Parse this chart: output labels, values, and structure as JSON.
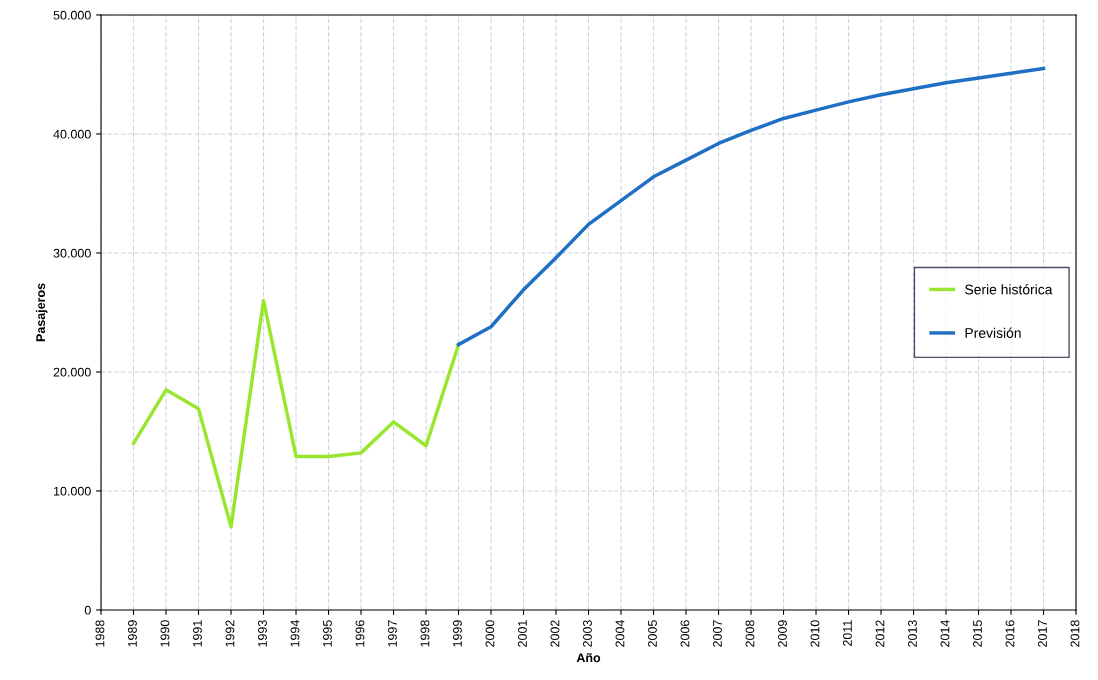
{
  "chart_data": {
    "type": "line",
    "xlabel": "Año",
    "ylabel": "Pasajeros",
    "series": [
      {
        "name": "Serie histórica",
        "color": "#99e62e",
        "x": [
          1989,
          1990,
          1991,
          1992,
          1993,
          1994,
          1995,
          1996,
          1997,
          1998,
          1999
        ],
        "values": [
          14000,
          18500,
          16900,
          7000,
          26000,
          12900,
          12900,
          13200,
          15800,
          13800,
          22300
        ]
      },
      {
        "name": "Previsión",
        "color": "#1f6fc4",
        "x": [
          1999,
          2000,
          2001,
          2002,
          2003,
          2004,
          2005,
          2006,
          2007,
          2008,
          2009,
          2010,
          2011,
          2012,
          2013,
          2014,
          2015,
          2016,
          2017
        ],
        "values": [
          22300,
          23800,
          26900,
          29600,
          32400,
          34400,
          36400,
          37800,
          39200,
          40300,
          41300,
          42000,
          42700,
          43300,
          43800,
          44300,
          44700,
          45100,
          45500
        ]
      }
    ],
    "xlim": [
      1988,
      2018
    ],
    "xticks": [
      1988,
      1989,
      1990,
      1991,
      1992,
      1993,
      1994,
      1995,
      1996,
      1997,
      1998,
      1999,
      2000,
      2001,
      2002,
      2003,
      2004,
      2005,
      2006,
      2007,
      2008,
      2009,
      2010,
      2011,
      2012,
      2013,
      2014,
      2015,
      2016,
      2017,
      2018
    ],
    "ylim": [
      0,
      50000
    ],
    "yticks": [
      0,
      {
        "value": 10000,
        "label": "10.000"
      },
      {
        "value": 20000,
        "label": "20.000"
      },
      {
        "value": 30000,
        "label": "30.000"
      },
      {
        "value": 40000,
        "label": "40.000"
      },
      {
        "value": 50000,
        "label": "50.000"
      }
    ],
    "grid": true,
    "legend": "right",
    "line_style": "solid",
    "marker": "none"
  }
}
